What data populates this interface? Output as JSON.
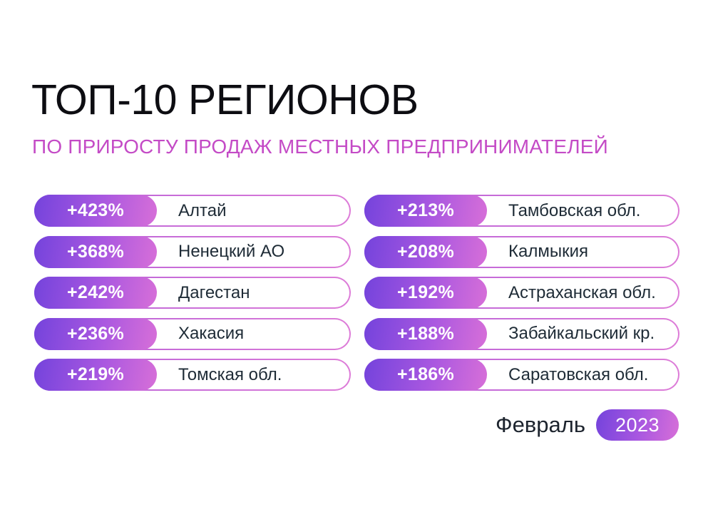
{
  "title": "ТОП-10 РЕГИОНОВ",
  "subtitle": "ПО ПРИРОСТУ ПРОДАЖ МЕСТНЫХ ПРЕДПРИНИМАТЕЛЕЙ",
  "rows": [
    {
      "value": "+423%",
      "region": "Алтай"
    },
    {
      "value": "+368%",
      "region": "Ненецкий АО"
    },
    {
      "value": "+242%",
      "region": "Дагестан"
    },
    {
      "value": "+236%",
      "region": "Хакасия"
    },
    {
      "value": "+219%",
      "region": "Томская обл."
    },
    {
      "value": "+213%",
      "region": "Тамбовская обл."
    },
    {
      "value": "+208%",
      "region": "Калмыкия"
    },
    {
      "value": "+192%",
      "region": "Астраханская обл."
    },
    {
      "value": "+188%",
      "region": "Забайкальский кр."
    },
    {
      "value": "+186%",
      "region": "Саратовская обл."
    }
  ],
  "footer": {
    "month": "Февраль",
    "year": "2023"
  },
  "colors": {
    "badge_gradient_start": "#7443DC",
    "badge_gradient_end": "#D76FD8",
    "pill_border_start": "#B65FD8",
    "pill_border_end": "#DD7CD8",
    "title_text": "#0D0D12",
    "subtitle_text": "#C44BC6",
    "region_text": "#1E2B36",
    "background": "#FFFFFF"
  },
  "chart_data": {
    "type": "bar",
    "title": "ТОП-10 РЕГИОНОВ",
    "subtitle": "ПО ПРИРОСТУ ПРОДАЖ МЕСТНЫХ ПРЕДПРИНИМАТЕЛЕЙ",
    "categories": [
      "Алтай",
      "Ненецкий АО",
      "Дагестан",
      "Хакасия",
      "Томская обл.",
      "Тамбовская обл.",
      "Калмыкия",
      "Астраханская обл.",
      "Забайкальский кр.",
      "Саратовская обл."
    ],
    "values": [
      423,
      368,
      242,
      236,
      219,
      213,
      208,
      192,
      188,
      186
    ],
    "unit": "%",
    "legend_position": "none",
    "grid": false,
    "period": "Февраль 2023"
  }
}
